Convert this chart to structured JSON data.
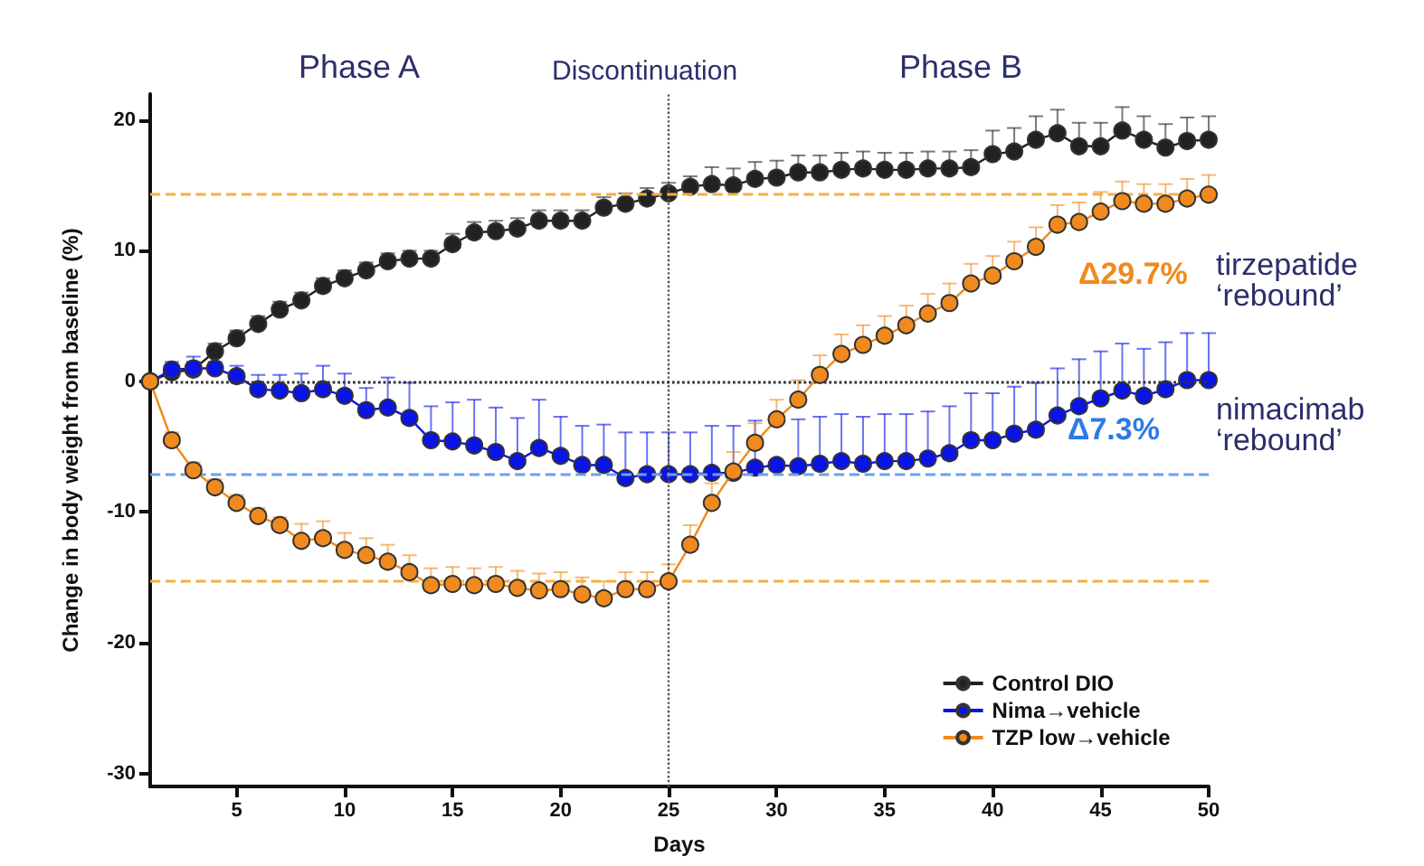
{
  "chart_data": {
    "type": "line",
    "xlabel": "Days",
    "ylabel": "Change in body weight from baseline (%)",
    "x": [
      1,
      2,
      3,
      4,
      5,
      6,
      7,
      8,
      9,
      10,
      11,
      12,
      13,
      14,
      15,
      16,
      17,
      18,
      19,
      20,
      21,
      22,
      23,
      24,
      25,
      26,
      27,
      28,
      29,
      30,
      31,
      32,
      33,
      34,
      35,
      36,
      37,
      38,
      39,
      40,
      41,
      42,
      43,
      44,
      45,
      46,
      47,
      48,
      49,
      50
    ],
    "xlim": [
      1,
      50
    ],
    "xticks": [
      5,
      10,
      15,
      20,
      25,
      30,
      35,
      40,
      45,
      50
    ],
    "ylim": [
      -31,
      22
    ],
    "yticks": [
      -30,
      -20,
      -10,
      0,
      10,
      20
    ],
    "grid": false,
    "legend": "bottom right",
    "marker": "circle",
    "line_style": "solid",
    "series": [
      {
        "name": "Control DIO",
        "color": "#222222",
        "values": [
          0,
          0.7,
          0.9,
          2.3,
          3.3,
          4.4,
          5.5,
          6.2,
          7.3,
          7.9,
          8.5,
          9.2,
          9.4,
          9.4,
          10.5,
          11.4,
          11.5,
          11.7,
          12.3,
          12.3,
          12.3,
          13.3,
          13.6,
          14.0,
          14.4,
          14.9,
          15.1,
          15.0,
          15.5,
          15.6,
          16.0,
          16.0,
          16.2,
          16.3,
          16.2,
          16.2,
          16.3,
          16.3,
          16.4,
          17.4,
          17.6,
          18.5,
          19.0,
          18.0,
          18.0,
          19.2,
          18.5,
          17.9,
          18.4,
          18.5
        ],
        "errors": [
          null,
          [
            0.7,
            1.3
          ],
          [
            0.9,
            1.5
          ],
          [
            2.3,
            2.9
          ],
          [
            3.3,
            3.9
          ],
          [
            4.4,
            5.0
          ],
          [
            5.5,
            6.1
          ],
          [
            6.2,
            6.8
          ],
          [
            7.3,
            7.9
          ],
          [
            7.9,
            8.5
          ],
          [
            8.5,
            9.1
          ],
          [
            9.2,
            9.8
          ],
          [
            9.4,
            10.0
          ],
          [
            9.4,
            10.0
          ],
          [
            10.5,
            11.3
          ],
          [
            11.4,
            12.2
          ],
          [
            11.5,
            12.3
          ],
          [
            11.7,
            12.5
          ],
          [
            12.3,
            13.1
          ],
          [
            12.3,
            13.1
          ],
          [
            12.3,
            13.1
          ],
          [
            13.3,
            14.1
          ],
          [
            13.6,
            14.4
          ],
          [
            14.0,
            14.8
          ],
          [
            14.4,
            15.2
          ],
          [
            14.9,
            15.7
          ],
          [
            15.1,
            16.4
          ],
          [
            15.0,
            16.3
          ],
          [
            15.5,
            16.8
          ],
          [
            15.6,
            16.9
          ],
          [
            16.0,
            17.3
          ],
          [
            16.0,
            17.3
          ],
          [
            16.2,
            17.5
          ],
          [
            16.3,
            17.6
          ],
          [
            16.2,
            17.5
          ],
          [
            16.2,
            17.5
          ],
          [
            16.3,
            17.6
          ],
          [
            16.3,
            17.6
          ],
          [
            16.4,
            17.7
          ],
          [
            17.4,
            19.2
          ],
          [
            17.6,
            19.4
          ],
          [
            18.5,
            20.3
          ],
          [
            19.0,
            20.8
          ],
          [
            18.0,
            19.8
          ],
          [
            18.0,
            19.8
          ],
          [
            19.2,
            21.0
          ],
          [
            18.5,
            20.3
          ],
          [
            17.9,
            19.7
          ],
          [
            18.4,
            20.2
          ],
          [
            18.5,
            20.3
          ]
        ]
      },
      {
        "name": "Nima→vehicle",
        "color": "#0a14e6",
        "values": [
          0,
          0.9,
          1.0,
          1.0,
          0.4,
          -0.6,
          -0.7,
          -0.9,
          -0.6,
          -1.1,
          -2.2,
          -2.0,
          -2.8,
          -4.5,
          -4.6,
          -4.9,
          -5.4,
          -6.1,
          -5.1,
          -5.7,
          -6.4,
          -6.4,
          -7.4,
          -7.1,
          -7.1,
          -7.1,
          -7.0,
          -7.0,
          -6.6,
          -6.4,
          -6.5,
          -6.3,
          -6.1,
          -6.3,
          -6.1,
          -6.1,
          -5.9,
          -5.5,
          -4.5,
          -4.5,
          -4.0,
          -3.7,
          -2.6,
          -1.9,
          -1.3,
          -0.7,
          -1.1,
          -0.6,
          0.1,
          0.1
        ],
        "errors": [
          null,
          [
            0.9,
            1.5
          ],
          [
            1.0,
            1.9
          ],
          [
            1.0,
            1.5
          ],
          [
            0.4,
            1.2
          ],
          [
            -0.6,
            0.5
          ],
          [
            -0.7,
            0.5
          ],
          [
            -0.9,
            0.6
          ],
          [
            -0.6,
            1.2
          ],
          [
            -1.1,
            0.6
          ],
          [
            -2.2,
            -0.5
          ],
          [
            -2.0,
            0.3
          ],
          [
            -2.8,
            -0.1
          ],
          [
            -4.5,
            -1.9
          ],
          [
            -4.6,
            -1.6
          ],
          [
            -4.9,
            -1.4
          ],
          [
            -5.4,
            -2.0
          ],
          [
            -6.1,
            -2.8
          ],
          [
            -5.1,
            -1.4
          ],
          [
            -5.7,
            -2.7
          ],
          [
            -6.4,
            -3.4
          ],
          [
            -6.4,
            -3.3
          ],
          [
            -7.4,
            -3.9
          ],
          [
            -7.1,
            -3.9
          ],
          [
            -7.1,
            -3.9
          ],
          [
            -7.1,
            -3.9
          ],
          [
            -7.0,
            -3.4
          ],
          [
            -7.0,
            -3.4
          ],
          [
            -6.6,
            -3.0
          ],
          null,
          [
            -6.5,
            -2.9
          ],
          [
            -6.3,
            -2.7
          ],
          [
            -6.1,
            -2.5
          ],
          [
            -6.3,
            -2.7
          ],
          [
            -6.1,
            -2.5
          ],
          [
            -6.1,
            -2.5
          ],
          [
            -5.9,
            -2.3
          ],
          [
            -5.5,
            -1.9
          ],
          [
            -4.5,
            -0.9
          ],
          [
            -4.5,
            -0.9
          ],
          [
            -4.0,
            -0.4
          ],
          [
            -3.7,
            -0.1
          ],
          [
            -2.6,
            1.0
          ],
          [
            -1.9,
            1.7
          ],
          [
            -1.3,
            2.3
          ],
          [
            -0.7,
            2.9
          ],
          [
            -1.1,
            2.5
          ],
          [
            -0.6,
            3.0
          ],
          [
            0.1,
            3.7
          ],
          [
            0.1,
            3.7
          ]
        ]
      },
      {
        "name": "TZP low→vehicle",
        "color": "#f08a1e",
        "values": [
          0,
          -4.5,
          -6.8,
          -8.1,
          -9.3,
          -10.3,
          -11.0,
          -12.2,
          -12.0,
          -12.9,
          -13.3,
          -13.8,
          -14.6,
          -15.6,
          -15.5,
          -15.6,
          -15.5,
          -15.8,
          -16.0,
          -15.9,
          -16.3,
          -16.6,
          -15.9,
          -15.9,
          -15.3,
          -12.5,
          -9.3,
          -6.9,
          -4.7,
          -2.9,
          -1.4,
          0.5,
          2.1,
          2.8,
          3.5,
          4.3,
          5.2,
          6.0,
          7.5,
          8.1,
          9.2,
          10.3,
          12.0,
          12.2,
          13.0,
          13.8,
          13.6,
          13.6,
          14.0,
          14.3
        ],
        "errors": [
          null,
          [
            -4.5,
            -3.9
          ],
          [
            -6.8,
            -6.2
          ],
          [
            -8.1,
            -7.5
          ],
          [
            -9.3,
            -8.7
          ],
          [
            -10.3,
            -9.7
          ],
          [
            -11.0,
            -10.4
          ],
          [
            -12.2,
            -10.9
          ],
          [
            -12.0,
            -10.7
          ],
          [
            -12.9,
            -11.6
          ],
          [
            -13.3,
            -12.0
          ],
          [
            -13.8,
            -12.5
          ],
          [
            -14.6,
            -13.3
          ],
          [
            -15.6,
            -14.3
          ],
          [
            -15.5,
            -14.2
          ],
          [
            -15.6,
            -14.3
          ],
          [
            -15.5,
            -14.2
          ],
          [
            -15.8,
            -14.5
          ],
          [
            -16.0,
            -14.7
          ],
          [
            -15.9,
            -14.6
          ],
          [
            -16.3,
            -15.0
          ],
          [
            -16.6,
            -15.3
          ],
          [
            -15.9,
            -14.6
          ],
          [
            -15.9,
            -14.6
          ],
          [
            -15.3,
            -14.0
          ],
          [
            -12.5,
            -11.0
          ],
          [
            -9.3,
            -7.8
          ],
          [
            -6.9,
            -5.4
          ],
          [
            -4.7,
            -3.2
          ],
          [
            -2.9,
            -1.4
          ],
          [
            -1.4,
            0.1
          ],
          [
            0.5,
            2.0
          ],
          [
            2.1,
            3.6
          ],
          [
            2.8,
            4.3
          ],
          [
            3.5,
            5.0
          ],
          [
            4.3,
            5.8
          ],
          [
            5.2,
            6.7
          ],
          [
            6.0,
            7.5
          ],
          [
            7.5,
            9.0
          ],
          [
            8.1,
            9.6
          ],
          [
            9.2,
            10.7
          ],
          [
            10.3,
            11.8
          ],
          [
            12.0,
            13.5
          ],
          [
            12.2,
            13.7
          ],
          [
            13.0,
            14.5
          ],
          [
            13.8,
            15.3
          ],
          [
            13.6,
            15.1
          ],
          [
            13.6,
            15.1
          ],
          [
            14.0,
            15.5
          ],
          [
            14.3,
            15.8
          ]
        ]
      }
    ],
    "ref_lines": [
      {
        "axis": "x",
        "value": 25,
        "color": "#555555",
        "line_style": "dotted"
      },
      {
        "axis": "y",
        "value": 0,
        "color": "#333333",
        "line_style": "dotted"
      },
      {
        "axis": "y",
        "value": 14.3,
        "color": "#f5b041",
        "line_style": "dashed"
      },
      {
        "axis": "y",
        "value": -15.3,
        "color": "#f5b041",
        "line_style": "dashed"
      },
      {
        "axis": "y",
        "value": -7.1,
        "color": "#6aa0f0",
        "line_style": "dashed"
      }
    ],
    "annotations": [
      "Phase A",
      "Discontinuation",
      "Phase B",
      "Δ29.7%",
      "tirzepatide ‘rebound’",
      "Δ7.3%",
      "nimacimab ‘rebound’"
    ]
  }
}
